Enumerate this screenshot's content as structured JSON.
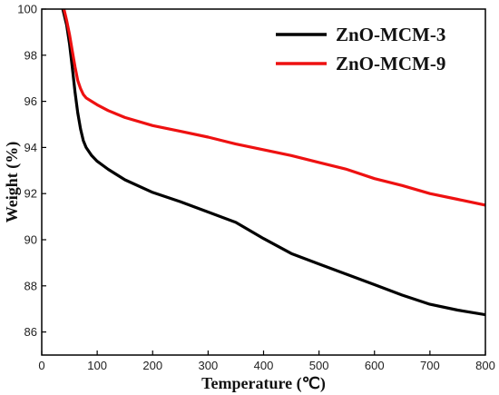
{
  "chart_data": {
    "type": "line",
    "title": "",
    "xlabel": "Temperature (℃)",
    "ylabel": "Weight (%)",
    "xlim": [
      0,
      800
    ],
    "ylim": [
      85,
      100
    ],
    "xticks": [
      "0",
      "100",
      "200",
      "300",
      "400",
      "500",
      "600",
      "700",
      "800"
    ],
    "yticks": [
      "86",
      "88",
      "90",
      "92",
      "94",
      "96",
      "98",
      "100"
    ],
    "grid": false,
    "legend_position": "top-right",
    "series": [
      {
        "name": "ZnO-MCM-3",
        "color": "#000000",
        "x": [
          38,
          45,
          50,
          55,
          60,
          65,
          70,
          75,
          80,
          90,
          100,
          120,
          150,
          200,
          250,
          300,
          350,
          400,
          450,
          500,
          550,
          600,
          650,
          700,
          750,
          800
        ],
        "y": [
          100,
          99.3,
          98.5,
          97.5,
          96.4,
          95.5,
          94.8,
          94.3,
          94.0,
          93.65,
          93.4,
          93.05,
          92.6,
          92.05,
          91.65,
          91.2,
          90.75,
          90.05,
          89.4,
          88.95,
          88.5,
          88.05,
          87.6,
          87.2,
          86.95,
          86.75
        ]
      },
      {
        "name": "ZnO-MCM-9",
        "color": "#ee1111",
        "x": [
          40,
          45,
          50,
          55,
          60,
          65,
          70,
          75,
          80,
          90,
          100,
          120,
          150,
          200,
          250,
          300,
          350,
          400,
          450,
          500,
          550,
          600,
          650,
          700,
          750,
          800
        ],
        "y": [
          100,
          99.5,
          98.9,
          98.2,
          97.5,
          96.9,
          96.55,
          96.3,
          96.15,
          96.0,
          95.85,
          95.6,
          95.3,
          94.95,
          94.7,
          94.45,
          94.15,
          93.9,
          93.65,
          93.35,
          93.05,
          92.65,
          92.35,
          92.0,
          91.75,
          91.5
        ]
      }
    ]
  }
}
